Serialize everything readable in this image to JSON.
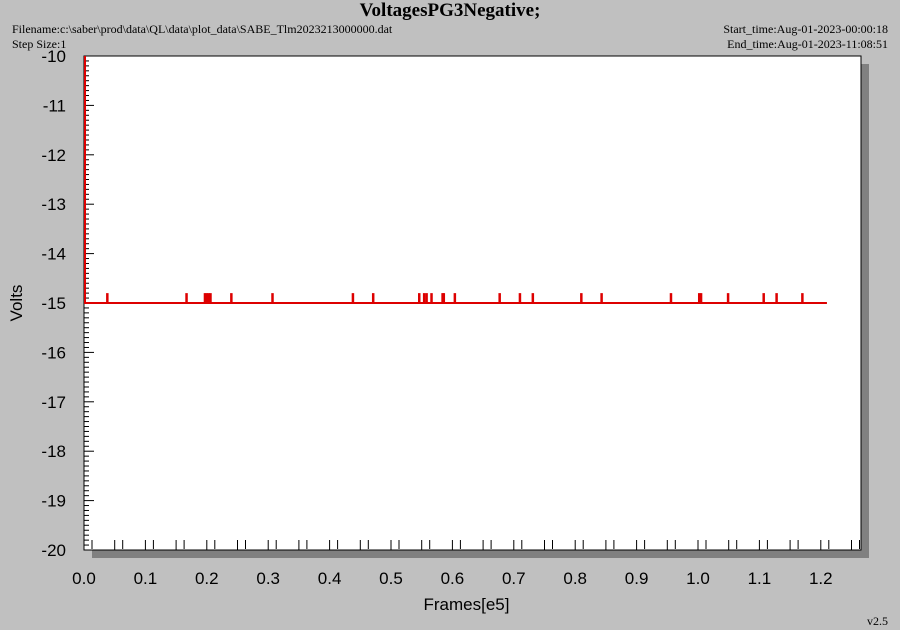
{
  "header": {
    "title": "VoltagesPG3Negative;",
    "filename": "Filename:c:\\saber\\prod\\data\\QL\\data\\plot_data\\SABE_Tlm2023213000000.dat",
    "step_size": "Step Size:1",
    "start_time": "Start_time:Aug-01-2023-00:00:18",
    "end_time": "End_time:Aug-01-2023-11:08:51"
  },
  "footer": {
    "version": "v2.5"
  },
  "colors": {
    "series": "#dd0000",
    "plot_bg": "#ffffff",
    "page_bg": "#c0c0c0",
    "shadow": "#808080"
  },
  "chart_data": {
    "type": "line",
    "title": "VoltagesPG3Negative;",
    "xlabel": "Frames[e5]",
    "ylabel": "Volts",
    "xlim": [
      0,
      1.27
    ],
    "ylim": [
      -20,
      -10
    ],
    "x_ticks": [
      "0.0",
      "0.1",
      "0.2",
      "0.3",
      "0.4",
      "0.5",
      "0.6",
      "0.7",
      "0.8",
      "0.9",
      "1.0",
      "1.1",
      "1.2"
    ],
    "y_ticks": [
      "-10",
      "-11",
      "-12",
      "-13",
      "-14",
      "-15",
      "-16",
      "-17",
      "-18",
      "-19",
      "-20"
    ],
    "grid": false,
    "series": [
      {
        "baseline": -15.0,
        "x_end": 1.21,
        "initial_spike": {
          "x": 0.0,
          "y_from": -15.0,
          "y_to": -10.0
        },
        "spike_height": -14.8,
        "spikes_x": [
          0.038,
          0.167,
          0.197,
          0.2,
          0.203,
          0.206,
          0.24,
          0.307,
          0.438,
          0.471,
          0.546,
          0.554,
          0.558,
          0.566,
          0.584,
          0.586,
          0.604,
          0.677,
          0.71,
          0.731,
          0.81,
          0.843,
          0.956,
          1.002,
          1.005,
          1.049,
          1.107,
          1.128,
          1.17
        ]
      }
    ]
  }
}
